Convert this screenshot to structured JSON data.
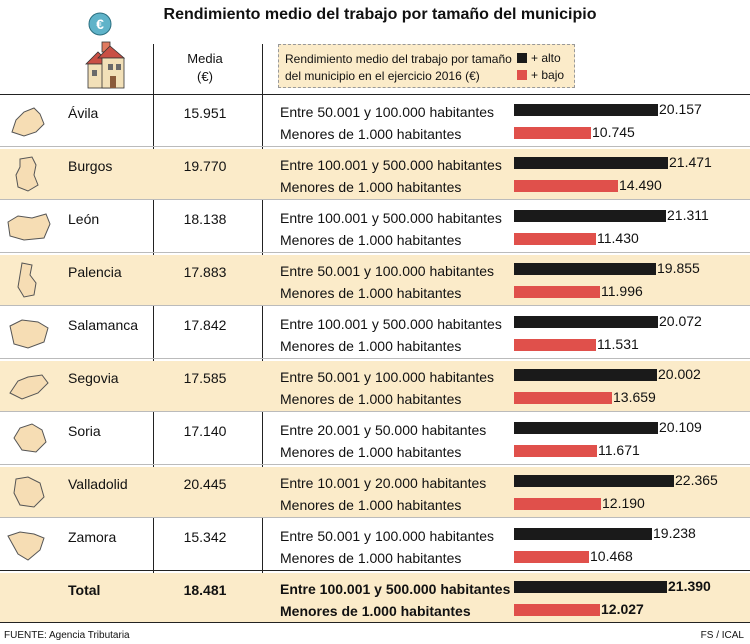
{
  "title": "Rendimiento medio del trabajo por tamaño del municipio",
  "header": {
    "media_label": "Media",
    "media_unit": "(€)"
  },
  "legend": {
    "text": "Rendimiento medio del trabajo por tamaño del municipio en el ejercicio 2016 (€)",
    "high_label": "+ alto",
    "low_label": "+ bajo"
  },
  "colors": {
    "high": "#1a1a1a",
    "low": "#e0504b",
    "band": "#fbebc9"
  },
  "chart_data": {
    "type": "bar",
    "title": "Rendimiento medio del trabajo por tamaño del municipio",
    "xlim": [
      0,
      22365
    ],
    "series": [
      {
        "name": "+ alto",
        "values": [
          20157,
          21471,
          21311,
          19855,
          20072,
          20002,
          20109,
          22365,
          19238,
          21390
        ]
      },
      {
        "name": "+ bajo",
        "values": [
          10745,
          14490,
          11430,
          11996,
          11531,
          13659,
          11671,
          12190,
          10468,
          12027
        ]
      }
    ],
    "rows": [
      {
        "province": "Ávila",
        "media": "15.951",
        "high_label": "Entre 50.001 y 100.000 habitantes",
        "high_value": 20157,
        "high_text": "20.157",
        "low_label": "Menores de 1.000 habitantes",
        "low_value": 10745,
        "low_text": "10.745"
      },
      {
        "province": "Burgos",
        "media": "19.770",
        "high_label": "Entre 100.001 y 500.000 habitantes",
        "high_value": 21471,
        "high_text": "21.471",
        "low_label": "Menores de 1.000 habitantes",
        "low_value": 14490,
        "low_text": "14.490"
      },
      {
        "province": "León",
        "media": "18.138",
        "high_label": "Entre 100.001 y 500.000 habitantes",
        "high_value": 21311,
        "high_text": "21.311",
        "low_label": "Menores de 1.000 habitantes",
        "low_value": 11430,
        "low_text": "11.430"
      },
      {
        "province": "Palencia",
        "media": "17.883",
        "high_label": "Entre 50.001 y 100.000 habitantes",
        "high_value": 19855,
        "high_text": "19.855",
        "low_label": "Menores de 1.000 habitantes",
        "low_value": 11996,
        "low_text": "11.996"
      },
      {
        "province": "Salamanca",
        "media": "17.842",
        "high_label": "Entre 100.001 y 500.000 habitantes",
        "high_value": 20072,
        "high_text": "20.072",
        "low_label": "Menores de 1.000 habitantes",
        "low_value": 11531,
        "low_text": "11.531"
      },
      {
        "province": "Segovia",
        "media": "17.585",
        "high_label": "Entre 50.001 y 100.000 habitantes",
        "high_value": 20002,
        "high_text": "20.002",
        "low_label": "Menores de 1.000 habitantes",
        "low_value": 13659,
        "low_text": "13.659"
      },
      {
        "province": "Soria",
        "media": "17.140",
        "high_label": "Entre 20.001 y 50.000 habitantes",
        "high_value": 20109,
        "high_text": "20.109",
        "low_label": "Menores de 1.000 habitantes",
        "low_value": 11671,
        "low_text": "11.671"
      },
      {
        "province": "Valladolid",
        "media": "20.445",
        "high_label": "Entre 10.001 y 20.000 habitantes",
        "high_value": 22365,
        "high_text": "22.365",
        "low_label": "Menores de 1.000 habitantes",
        "low_value": 12190,
        "low_text": "12.190"
      },
      {
        "province": "Zamora",
        "media": "15.342",
        "high_label": "Entre 50.001 y 100.000 habitantes",
        "high_value": 19238,
        "high_text": "19.238",
        "low_label": "Menores de 1.000 habitantes",
        "low_value": 10468,
        "low_text": "10.468"
      },
      {
        "province": "Total",
        "media": "18.481",
        "high_label": "Entre 100.001 y 500.000 habitantes",
        "high_value": 21390,
        "high_text": "21.390",
        "low_label": "Menores de 1.000 habitantes",
        "low_value": 12027,
        "low_text": "12.027",
        "total": true
      }
    ]
  },
  "footer": {
    "source": "FUENTE: Agencia Tributaria",
    "credit": "FS / ICAL"
  }
}
